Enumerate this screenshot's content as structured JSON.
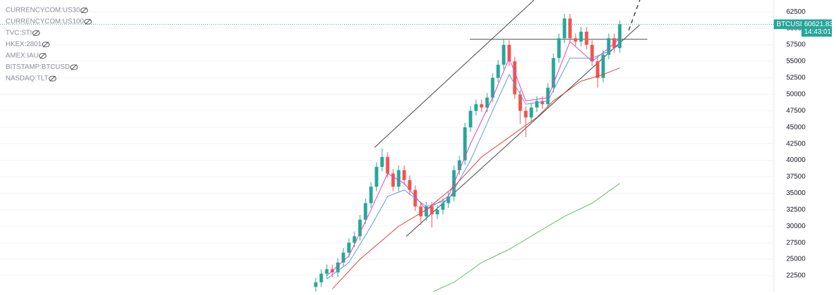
{
  "chart_data": {
    "type": "candlestick",
    "legend": [
      "CURRENCYCOM:US30",
      "CURRENCYCOM:US100",
      "TVC:STI",
      "HKEX:2801",
      "AMEX:IAU",
      "BITSTAMP:BTCUSD",
      "NASDAQ:TLT"
    ],
    "price_label": {
      "symbol": "BTCUSD",
      "price": "60621.83",
      "countdown": "14:43:01"
    },
    "xlim": [
      -57.125,
      82.875
    ],
    "ylim": [
      20100,
      64300
    ],
    "yticks": [
      22500,
      25000,
      27500,
      30000,
      32500,
      35000,
      37500,
      40000,
      42500,
      45000,
      47500,
      50000,
      52500,
      55000,
      57500,
      60000,
      62500
    ],
    "grid": true,
    "up_color": "#26a69a",
    "down_color": "#ef5350",
    "open": [
      20800,
      21500,
      22800,
      23500,
      23000,
      24500,
      26000,
      27500,
      28500,
      31000,
      33500,
      36000,
      39000,
      40500,
      38000,
      36000,
      38500,
      37000,
      35500,
      33000,
      31500,
      33000,
      31800,
      32500,
      33500,
      34500,
      38500,
      40000,
      45000,
      47500,
      48500,
      48000,
      49500,
      52500,
      54500,
      57500,
      55000,
      50000,
      47500,
      46500,
      48000,
      49000,
      48500,
      51000,
      55500,
      58500,
      61500,
      58500,
      58000,
      59500,
      57500,
      55000,
      52500,
      56000,
      58500,
      57000
    ],
    "high": [
      22200,
      23500,
      24200,
      24200,
      25200,
      26700,
      28200,
      29200,
      31700,
      34200,
      36700,
      39700,
      41800,
      41200,
      38700,
      39200,
      39200,
      37700,
      36200,
      33700,
      33700,
      33700,
      33200,
      34200,
      35200,
      39200,
      40700,
      45700,
      48200,
      49200,
      49200,
      50200,
      53200,
      55200,
      58300,
      58200,
      55700,
      50700,
      48200,
      48700,
      49700,
      49700,
      51700,
      56200,
      59200,
      62200,
      62200,
      59200,
      60200,
      60200,
      58200,
      55700,
      56700,
      59200,
      59200,
      61200
    ],
    "low": [
      20100,
      20800,
      22100,
      22300,
      22300,
      23800,
      25300,
      26800,
      27800,
      30300,
      32800,
      35300,
      38300,
      37300,
      35300,
      35300,
      36300,
      34800,
      32300,
      30200,
      30800,
      29800,
      31100,
      31800,
      32800,
      33800,
      37800,
      39300,
      44300,
      46800,
      47300,
      47300,
      48800,
      51800,
      53800,
      54300,
      49300,
      45500,
      43500,
      45800,
      47300,
      47800,
      47800,
      50300,
      54800,
      57800,
      57800,
      57300,
      57300,
      56800,
      54300,
      51000,
      51800,
      55300,
      56300,
      56300
    ],
    "close": [
      21500,
      22800,
      23500,
      23000,
      24500,
      26000,
      27500,
      28500,
      31000,
      33500,
      36000,
      39000,
      40500,
      38000,
      36000,
      38500,
      37000,
      35500,
      33000,
      31500,
      33000,
      31800,
      32500,
      33500,
      34500,
      38500,
      40000,
      45000,
      47500,
      48500,
      48000,
      49500,
      52500,
      54500,
      57500,
      55000,
      50000,
      47500,
      46500,
      48000,
      49000,
      48500,
      51000,
      55500,
      58500,
      61500,
      58500,
      58000,
      59500,
      57500,
      55000,
      52500,
      56000,
      58500,
      57000,
      60621.83
    ],
    "lines": [
      {
        "color": "#e040c0",
        "x": [
          2,
          6,
          10,
          13,
          16,
          20,
          24,
          28,
          32,
          35,
          38,
          42,
          46,
          50,
          53,
          55
        ],
        "values": [
          22500,
          25500,
          32500,
          38000,
          36500,
          32500,
          34500,
          42500,
          49500,
          55500,
          49000,
          49500,
          58000,
          55000,
          57000,
          58500
        ]
      },
      {
        "color": "#5b9bd5",
        "x": [
          2,
          6,
          10,
          13,
          16,
          20,
          24,
          28,
          32,
          35,
          38,
          42,
          46,
          50,
          53,
          55
        ],
        "values": [
          22000,
          24500,
          30000,
          34500,
          35500,
          33000,
          34000,
          40000,
          47500,
          53000,
          48500,
          49000,
          55500,
          55500,
          56500,
          57500
        ]
      },
      {
        "color": "#e0403a",
        "x": [
          3,
          8,
          15,
          20,
          25,
          30,
          35,
          40,
          43,
          48,
          52,
          55
        ],
        "values": [
          20500,
          25000,
          30000,
          32500,
          36000,
          40500,
          43500,
          46500,
          49000,
          52000,
          53000,
          54000
        ]
      },
      {
        "color": "#66bb6a",
        "x": [
          21,
          25,
          30,
          35,
          40,
          45,
          50,
          55
        ],
        "values": [
          20000,
          21500,
          24500,
          26500,
          29000,
          31500,
          33500,
          36500
        ]
      }
    ]
  }
}
